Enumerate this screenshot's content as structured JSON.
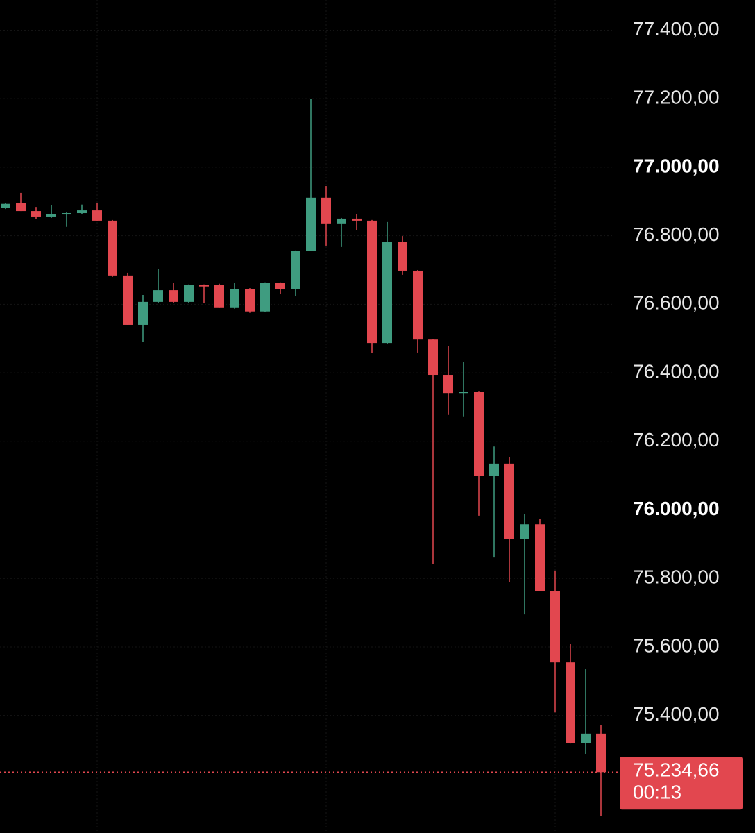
{
  "chart_data": {
    "type": "candlestick",
    "up_color": "#3f9c80",
    "down_color": "#e2474f",
    "grid": true,
    "ylim": [
      75057,
      77488
    ],
    "yticks": [
      {
        "value": 75400,
        "label": "75.400,00"
      },
      {
        "value": 75600,
        "label": "75.600,00"
      },
      {
        "value": 75800,
        "label": "75.800,00"
      },
      {
        "value": 76000,
        "label": "76.000,00"
      },
      {
        "value": 76200,
        "label": "76.200,00"
      },
      {
        "value": 76400,
        "label": "76.400,00"
      },
      {
        "value": 76600,
        "label": "76.600,00"
      },
      {
        "value": 76800,
        "label": "76.800,00"
      },
      {
        "value": 77000,
        "label": "77.000,00"
      },
      {
        "value": 77200,
        "label": "77.200,00"
      },
      {
        "value": 77400,
        "label": "77.400,00"
      }
    ],
    "open": [
      76882,
      76895,
      76872,
      76856,
      76862,
      76866,
      76874,
      76844,
      76684,
      76540,
      76607,
      76641,
      76607,
      76656,
      76656,
      76591,
      76645,
      76579,
      76662,
      76645,
      76755,
      76911,
      76836,
      76850,
      76844,
      76487,
      76783,
      76698,
      76497,
      76394,
      76341,
      76345,
      76100,
      76135,
      75914,
      75958,
      75764,
      75555,
      75320,
      75347
    ],
    "high": [
      76896,
      76925,
      76884,
      76889,
      76868,
      76891,
      76895,
      76846,
      76692,
      76627,
      76702,
      76662,
      76658,
      76658,
      76660,
      76662,
      76647,
      76664,
      76664,
      76757,
      77199,
      76945,
      76852,
      76864,
      76846,
      76840,
      76799,
      76700,
      76499,
      76479,
      76431,
      76347,
      76185,
      76155,
      75989,
      75973,
      75823,
      75608,
      75535,
      75371
    ],
    "low": [
      76878,
      76872,
      76848,
      76852,
      76826,
      76862,
      76844,
      76680,
      76540,
      76491,
      76603,
      76603,
      76603,
      76603,
      76591,
      76587,
      76575,
      76577,
      76629,
      76623,
      76755,
      76771,
      76767,
      76816,
      76459,
      76485,
      76686,
      76459,
      75841,
      76277,
      76273,
      75983,
      75861,
      75790,
      75695,
      75762,
      75409,
      75318,
      75288,
      75107
    ],
    "close": [
      76893,
      76872,
      76856,
      76862,
      76866,
      76874,
      76844,
      76684,
      76540,
      76607,
      76641,
      76607,
      76656,
      76652,
      76591,
      76645,
      76579,
      76662,
      76645,
      76755,
      76911,
      76836,
      76850,
      76844,
      76487,
      76783,
      76698,
      76497,
      76394,
      76341,
      76345,
      76100,
      76135,
      75914,
      75958,
      75764,
      75555,
      75320,
      75347,
      75234.66
    ],
    "last_price": {
      "value": 75234.66,
      "label": "75.234,66"
    },
    "countdown": "00:13"
  }
}
